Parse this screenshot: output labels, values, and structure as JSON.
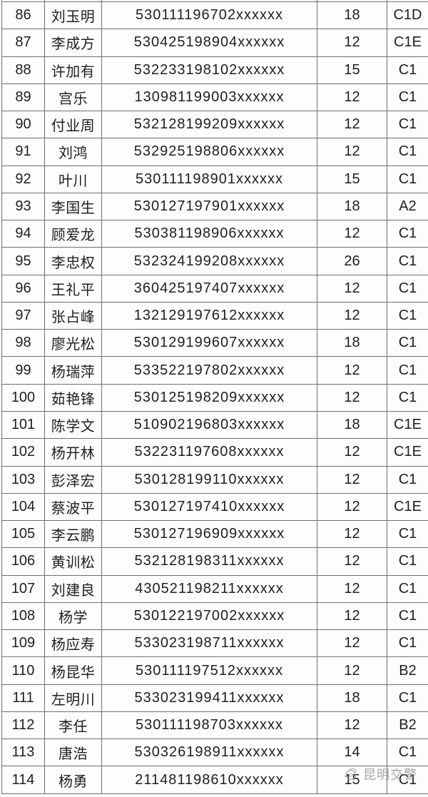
{
  "table": {
    "border_color": "#6f6f6f",
    "columns": [
      "index",
      "name",
      "id_number",
      "points",
      "license_class"
    ],
    "rows": [
      {
        "index": "86",
        "name": "刘玉明",
        "id_number": "530111196702xxxxxx",
        "points": "18",
        "license_class": "C1D"
      },
      {
        "index": "87",
        "name": "李成方",
        "id_number": "530425198904xxxxxx",
        "points": "12",
        "license_class": "C1E"
      },
      {
        "index": "88",
        "name": "许加有",
        "id_number": "532233198102xxxxxx",
        "points": "15",
        "license_class": "C1"
      },
      {
        "index": "89",
        "name": "宫乐",
        "id_number": "130981199003xxxxxx",
        "points": "12",
        "license_class": "C1"
      },
      {
        "index": "90",
        "name": "付业周",
        "id_number": "532128199209xxxxxx",
        "points": "12",
        "license_class": "C1"
      },
      {
        "index": "91",
        "name": "刘鸿",
        "id_number": "532925198806xxxxxx",
        "points": "12",
        "license_class": "C1"
      },
      {
        "index": "92",
        "name": "叶川",
        "id_number": "530111198901xxxxxx",
        "points": "15",
        "license_class": "C1"
      },
      {
        "index": "93",
        "name": "李国生",
        "id_number": "530127197901xxxxxx",
        "points": "18",
        "license_class": "A2"
      },
      {
        "index": "94",
        "name": "顾爱龙",
        "id_number": "530381198906xxxxxx",
        "points": "12",
        "license_class": "C1"
      },
      {
        "index": "95",
        "name": "李忠权",
        "id_number": "532324199208xxxxxx",
        "points": "26",
        "license_class": "C1"
      },
      {
        "index": "96",
        "name": "王礼平",
        "id_number": "360425197407xxxxxx",
        "points": "12",
        "license_class": "C1"
      },
      {
        "index": "97",
        "name": "张占峰",
        "id_number": "132129197612xxxxxx",
        "points": "12",
        "license_class": "C1"
      },
      {
        "index": "98",
        "name": "廖光松",
        "id_number": "530129199607xxxxxx",
        "points": "18",
        "license_class": "C1"
      },
      {
        "index": "99",
        "name": "杨瑞萍",
        "id_number": "533522197802xxxxxx",
        "points": "12",
        "license_class": "C1"
      },
      {
        "index": "100",
        "name": "茹艳锋",
        "id_number": "530125198209xxxxxx",
        "points": "12",
        "license_class": "C1"
      },
      {
        "index": "101",
        "name": "陈学文",
        "id_number": "510902196803xxxxxx",
        "points": "18",
        "license_class": "C1E"
      },
      {
        "index": "102",
        "name": "杨开林",
        "id_number": "532231197608xxxxxx",
        "points": "12",
        "license_class": "C1E"
      },
      {
        "index": "103",
        "name": "彭泽宏",
        "id_number": "530128199110xxxxxx",
        "points": "12",
        "license_class": "C1"
      },
      {
        "index": "104",
        "name": "蔡波平",
        "id_number": "530127197410xxxxxx",
        "points": "12",
        "license_class": "C1E"
      },
      {
        "index": "105",
        "name": "李云鹏",
        "id_number": "530127196909xxxxxx",
        "points": "12",
        "license_class": "C1"
      },
      {
        "index": "106",
        "name": "黄训松",
        "id_number": "532128198311xxxxxx",
        "points": "12",
        "license_class": "C1"
      },
      {
        "index": "107",
        "name": "刘建良",
        "id_number": "430521198211xxxxxx",
        "points": "12",
        "license_class": "C1"
      },
      {
        "index": "108",
        "name": "杨学",
        "id_number": "530122197002xxxxxx",
        "points": "12",
        "license_class": "C1"
      },
      {
        "index": "109",
        "name": "杨应寿",
        "id_number": "533023198711xxxxxx",
        "points": "12",
        "license_class": "C1"
      },
      {
        "index": "110",
        "name": "杨昆华",
        "id_number": "530111197512xxxxxx",
        "points": "12",
        "license_class": "B2"
      },
      {
        "index": "111",
        "name": "左明川",
        "id_number": "533023199411xxxxxx",
        "points": "18",
        "license_class": "C1"
      },
      {
        "index": "112",
        "name": "李任",
        "id_number": "530111198703xxxxxx",
        "points": "12",
        "license_class": "B2"
      },
      {
        "index": "113",
        "name": "唐浩",
        "id_number": "530326198911xxxxxx",
        "points": "14",
        "license_class": "C1"
      },
      {
        "index": "114",
        "name": "杨勇",
        "id_number": "211481198610xxxxxx",
        "points": "15",
        "license_class": "C1"
      }
    ]
  },
  "watermark": {
    "label": "昆明交警",
    "color": "#8f8f8f"
  }
}
